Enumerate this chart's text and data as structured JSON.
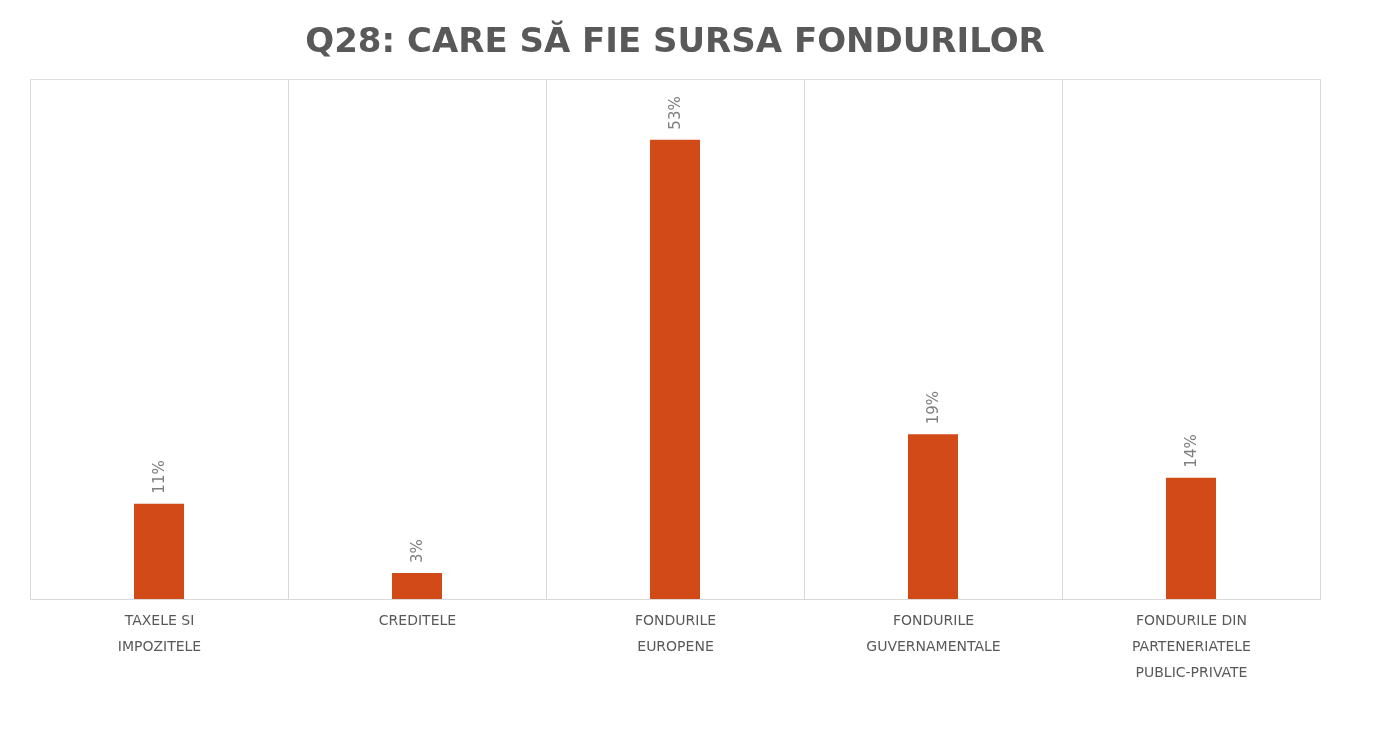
{
  "chart_data": {
    "type": "bar",
    "title": "Q28: CARE SĂ FIE SURSA FONDURILOR",
    "categories": [
      "TAXELE SI IMPOZITELE",
      "CREDITELE",
      "FONDURILE EUROPENE",
      "FONDURILE GUVERNAMENTALE",
      "FONDURILE DIN PARTENERIATELE PUBLIC-PRIVATE"
    ],
    "values": [
      11,
      3,
      53,
      19,
      14
    ],
    "value_labels": [
      "11%",
      "3%",
      "53%",
      "19%",
      "14%"
    ],
    "color": "#d24a17",
    "ylim": [
      0,
      60
    ],
    "grid": "x"
  }
}
